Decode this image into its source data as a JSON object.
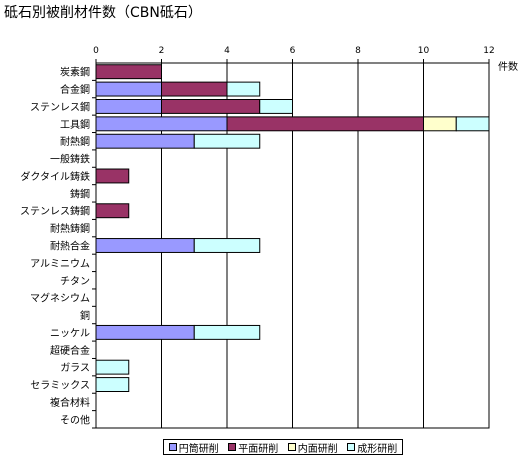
{
  "chart_data": {
    "type": "bar",
    "orientation": "horizontal",
    "stacked": true,
    "title": "砥石別被削材件数（CBN砥石）",
    "xlabel": "件数",
    "xlim": [
      0,
      12
    ],
    "xticks": [
      "0",
      "2",
      "4",
      "6",
      "8",
      "10",
      "12"
    ],
    "grid": true,
    "legend_position": "bottom",
    "categories": [
      "炭素鋼",
      "合金鋼",
      "ステンレス鋼",
      "工具鋼",
      "耐熱鋼",
      "一般鋳鉄",
      "ダクタイル鋳鉄",
      "鋳鋼",
      "ステンレス鋳鋼",
      "耐熱鋳鋼",
      "耐熱合金",
      "アルミニウム",
      "チタン",
      "マグネシウム",
      "銅",
      "ニッケル",
      "超硬合金",
      "ガラス",
      "セラミックス",
      "複合材料",
      "その他"
    ],
    "series": [
      {
        "name": "円筒研削",
        "color": "#9999ff",
        "values": [
          0,
          2,
          2,
          4,
          3,
          0,
          0,
          0,
          0,
          0,
          3,
          0,
          0,
          0,
          0,
          3,
          0,
          0,
          0,
          0,
          0
        ]
      },
      {
        "name": "平面研削",
        "color": "#993366",
        "values": [
          2,
          2,
          3,
          6,
          0,
          0,
          1,
          0,
          1,
          0,
          0,
          0,
          0,
          0,
          0,
          0,
          0,
          0,
          0,
          0,
          0
        ]
      },
      {
        "name": "内面研削",
        "color": "#ffffcc",
        "values": [
          0,
          0,
          0,
          1,
          0,
          0,
          0,
          0,
          0,
          0,
          0,
          0,
          0,
          0,
          0,
          0,
          0,
          0,
          0,
          0,
          0
        ]
      },
      {
        "name": "成形研削",
        "color": "#ccffff",
        "values": [
          0,
          1,
          1,
          1,
          2,
          0,
          0,
          0,
          0,
          0,
          2,
          0,
          0,
          0,
          0,
          2,
          0,
          1,
          1,
          0,
          0
        ]
      }
    ]
  }
}
